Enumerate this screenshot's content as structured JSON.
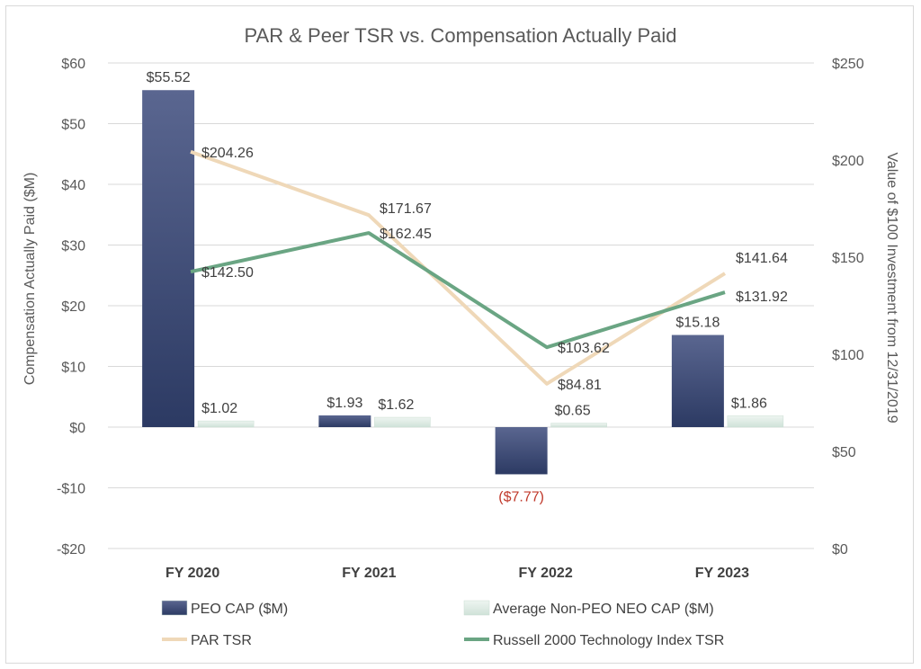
{
  "chart_data": {
    "type": "bar+line",
    "title": "PAR & Peer TSR vs. Compensation Actually Paid",
    "categories": [
      "FY 2020",
      "FY 2021",
      "FY 2022",
      "FY 2023"
    ],
    "y_left": {
      "label": "Compensation Actually Paid ($M)",
      "range": [
        -20,
        60
      ],
      "ticks": [
        60,
        50,
        40,
        30,
        20,
        10,
        0,
        -10,
        -20
      ],
      "tick_labels": [
        "$60",
        "$50",
        "$40",
        "$30",
        "$20",
        "$10",
        "$0",
        "-$10",
        "-$20"
      ]
    },
    "y_right": {
      "label": "Value of $100 Investment from 12/31/2019",
      "range": [
        0,
        250
      ],
      "ticks": [
        250,
        200,
        150,
        100,
        50,
        0
      ],
      "tick_labels": [
        "$250",
        "$200",
        "$150",
        "$100",
        "$50",
        "$0"
      ]
    },
    "bar_series": [
      {
        "name": "PEO CAP ($M)",
        "color": "#3b4a77",
        "values": [
          55.52,
          1.93,
          -7.77,
          15.18
        ],
        "labels": [
          "$55.52",
          "$1.93",
          "($7.77)",
          "$15.18"
        ]
      },
      {
        "name": "Average Non-PEO NEO CAP ($M)",
        "color": "#dbe9e2",
        "values": [
          1.02,
          1.62,
          0.65,
          1.86
        ],
        "labels": [
          "$1.02",
          "$1.62",
          "$0.65",
          "$1.86"
        ]
      }
    ],
    "line_series": [
      {
        "name": "PAR TSR",
        "color": "#efd8b8",
        "values": [
          204.26,
          171.67,
          84.81,
          141.64
        ],
        "labels": [
          "$204.26",
          "$171.67",
          "$84.81",
          "$141.64"
        ]
      },
      {
        "name": "Russell 2000 Technology Index TSR",
        "color": "#6aa583",
        "values": [
          142.5,
          162.45,
          103.62,
          131.92
        ],
        "labels": [
          "$142.50",
          "$162.45",
          "$103.62",
          "$131.92"
        ]
      }
    ],
    "negative_label_color": "#c0392b",
    "grid": true,
    "legend_position": "bottom"
  }
}
